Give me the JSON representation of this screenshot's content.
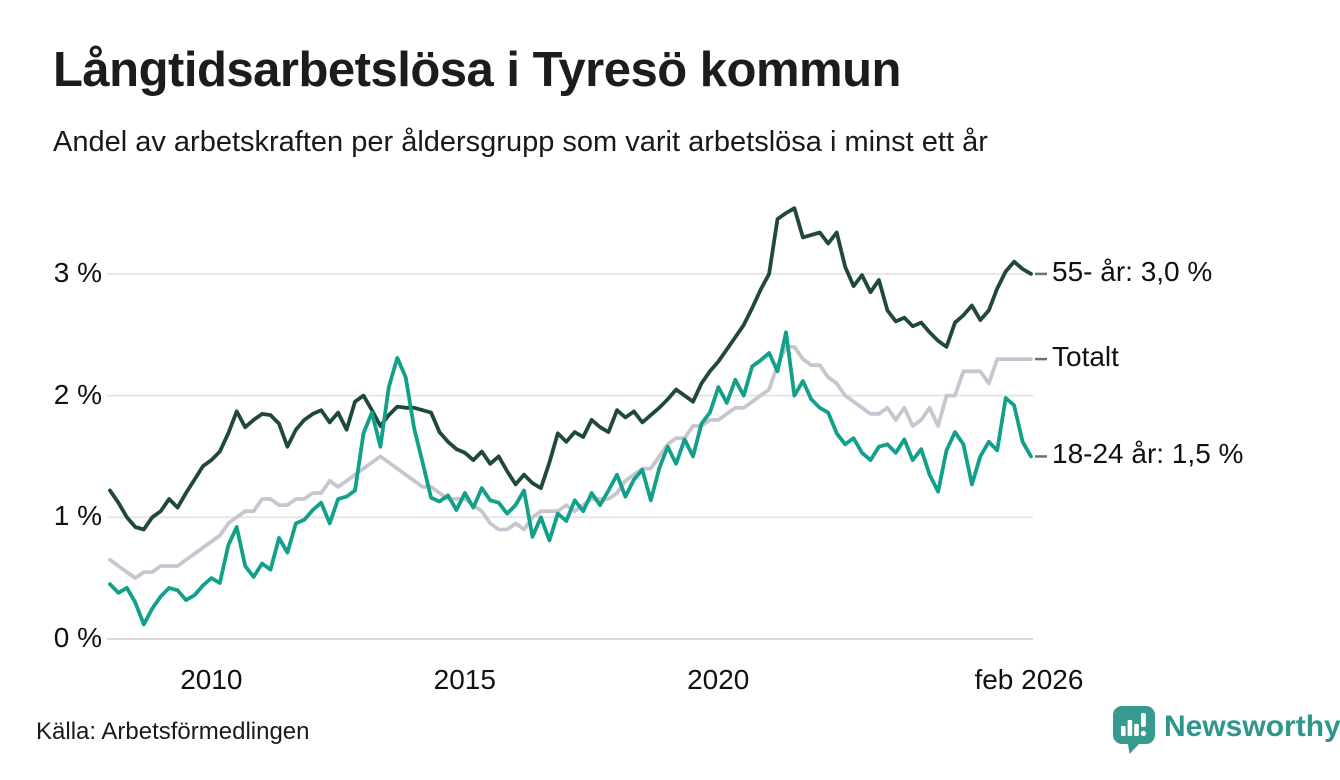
{
  "header": {
    "title": "Långtidsarbetslösa i Tyresö kommun",
    "subtitle": "Andel av arbetskraften per åldersgrupp som varit arbetslösa i minst ett år"
  },
  "chart_data": {
    "type": "line",
    "title": "Långtidsarbetslösa i Tyresö kommun",
    "subtitle": "Andel av arbetskraften per åldersgrupp som varit arbetslösa i minst ett år",
    "unit": "% av arbetskraften",
    "x_start_year": 2008.0,
    "x_interval_years": 0.1667,
    "x_end_label": "feb 2026",
    "ylim": [
      0,
      3.6
    ],
    "grid": "horizontal-only",
    "legend_position": "right-end-labels",
    "y_ticks": [
      {
        "label": "0 %",
        "value": 0
      },
      {
        "label": "1 %",
        "value": 1
      },
      {
        "label": "2 %",
        "value": 2
      },
      {
        "label": "3 %",
        "value": 3
      }
    ],
    "x_ticks": [
      {
        "label": "2010",
        "year": 2010
      },
      {
        "label": "2015",
        "year": 2015
      },
      {
        "label": "2020",
        "year": 2020
      },
      {
        "label": "feb 2026",
        "year": 2026.13
      }
    ],
    "series": [
      {
        "name": "55- år",
        "end_label": "55- år: 3,0 %",
        "last_value": 3.0,
        "color": "#21483e",
        "values": [
          1.22,
          1.12,
          1.0,
          0.92,
          0.9,
          1.0,
          1.05,
          1.15,
          1.08,
          1.2,
          1.31,
          1.42,
          1.47,
          1.54,
          1.69,
          1.87,
          1.74,
          1.8,
          1.85,
          1.84,
          1.77,
          1.58,
          1.72,
          1.8,
          1.85,
          1.88,
          1.78,
          1.86,
          1.72,
          1.95,
          2.0,
          1.88,
          1.75,
          1.84,
          1.91,
          1.9,
          1.9,
          1.88,
          1.86,
          1.7,
          1.62,
          1.56,
          1.53,
          1.47,
          1.54,
          1.44,
          1.5,
          1.38,
          1.27,
          1.35,
          1.28,
          1.24,
          1.45,
          1.69,
          1.62,
          1.7,
          1.66,
          1.8,
          1.74,
          1.7,
          1.88,
          1.82,
          1.87,
          1.78,
          1.84,
          1.9,
          1.97,
          2.05,
          2.0,
          1.95,
          2.1,
          2.2,
          2.28,
          2.38,
          2.48,
          2.58,
          2.72,
          2.87,
          3.0,
          3.45,
          3.5,
          3.54,
          3.3,
          3.32,
          3.34,
          3.25,
          3.34,
          3.06,
          2.9,
          2.99,
          2.85,
          2.95,
          2.7,
          2.61,
          2.64,
          2.57,
          2.6,
          2.52,
          2.45,
          2.4,
          2.6,
          2.66,
          2.74,
          2.62,
          2.7,
          2.88,
          3.02,
          3.1,
          3.04,
          3.0
        ]
      },
      {
        "name": "Totalt",
        "end_label": "Totalt",
        "last_value": 2.3,
        "color": "#c7c5d0",
        "values": [
          0.65,
          0.6,
          0.55,
          0.5,
          0.55,
          0.55,
          0.6,
          0.6,
          0.6,
          0.65,
          0.7,
          0.75,
          0.8,
          0.85,
          0.95,
          1.0,
          1.05,
          1.05,
          1.15,
          1.15,
          1.1,
          1.1,
          1.15,
          1.15,
          1.2,
          1.2,
          1.3,
          1.25,
          1.3,
          1.35,
          1.4,
          1.45,
          1.5,
          1.45,
          1.4,
          1.35,
          1.3,
          1.25,
          1.25,
          1.2,
          1.15,
          1.15,
          1.15,
          1.1,
          1.05,
          0.95,
          0.9,
          0.9,
          0.95,
          0.9,
          1.0,
          1.05,
          1.05,
          1.05,
          1.1,
          1.05,
          1.1,
          1.15,
          1.15,
          1.15,
          1.2,
          1.3,
          1.35,
          1.4,
          1.4,
          1.5,
          1.6,
          1.65,
          1.65,
          1.75,
          1.75,
          1.8,
          1.8,
          1.85,
          1.9,
          1.9,
          1.95,
          2.0,
          2.05,
          2.25,
          2.4,
          2.4,
          2.3,
          2.25,
          2.25,
          2.15,
          2.1,
          2.0,
          1.95,
          1.9,
          1.85,
          1.85,
          1.9,
          1.8,
          1.9,
          1.75,
          1.8,
          1.9,
          1.75,
          2.0,
          2.0,
          2.2,
          2.2,
          2.2,
          2.1,
          2.3,
          2.3,
          2.3,
          2.3,
          2.3
        ]
      },
      {
        "name": "18-24 år",
        "end_label": "18-24 år: 1,5 %",
        "last_value": 1.5,
        "color": "#13a08a",
        "values": [
          0.45,
          0.38,
          0.42,
          0.3,
          0.12,
          0.25,
          0.35,
          0.42,
          0.4,
          0.32,
          0.36,
          0.44,
          0.5,
          0.46,
          0.77,
          0.92,
          0.6,
          0.51,
          0.62,
          0.57,
          0.83,
          0.71,
          0.95,
          0.98,
          1.06,
          1.12,
          0.95,
          1.15,
          1.17,
          1.22,
          1.69,
          1.86,
          1.58,
          2.07,
          2.31,
          2.15,
          1.73,
          1.45,
          1.16,
          1.13,
          1.18,
          1.06,
          1.2,
          1.08,
          1.24,
          1.14,
          1.12,
          1.03,
          1.1,
          1.22,
          0.84,
          1.0,
          0.81,
          1.03,
          0.97,
          1.14,
          1.05,
          1.2,
          1.1,
          1.22,
          1.35,
          1.17,
          1.31,
          1.39,
          1.14,
          1.4,
          1.58,
          1.44,
          1.64,
          1.5,
          1.77,
          1.86,
          2.07,
          1.94,
          2.13,
          2.0,
          2.24,
          2.29,
          2.35,
          2.2,
          2.52,
          2.0,
          2.12,
          1.97,
          1.9,
          1.86,
          1.69,
          1.6,
          1.65,
          1.53,
          1.47,
          1.58,
          1.6,
          1.53,
          1.64,
          1.47,
          1.56,
          1.35,
          1.21,
          1.55,
          1.7,
          1.6,
          1.27,
          1.5,
          1.62,
          1.55,
          1.98,
          1.92,
          1.62,
          1.5
        ]
      }
    ]
  },
  "footer": {
    "source": "Källa: Arbetsförmedlingen",
    "brand": "Newsworthy"
  },
  "colors": {
    "series_55": "#21483e",
    "series_totalt": "#c7c5d0",
    "series_1824": "#13a08a",
    "gridline": "#e6e6e9",
    "baseline": "#d9d9dd",
    "end_tick": "#6e6e74",
    "brand_teal": "#379a8e",
    "text": "#1a1a1a"
  }
}
